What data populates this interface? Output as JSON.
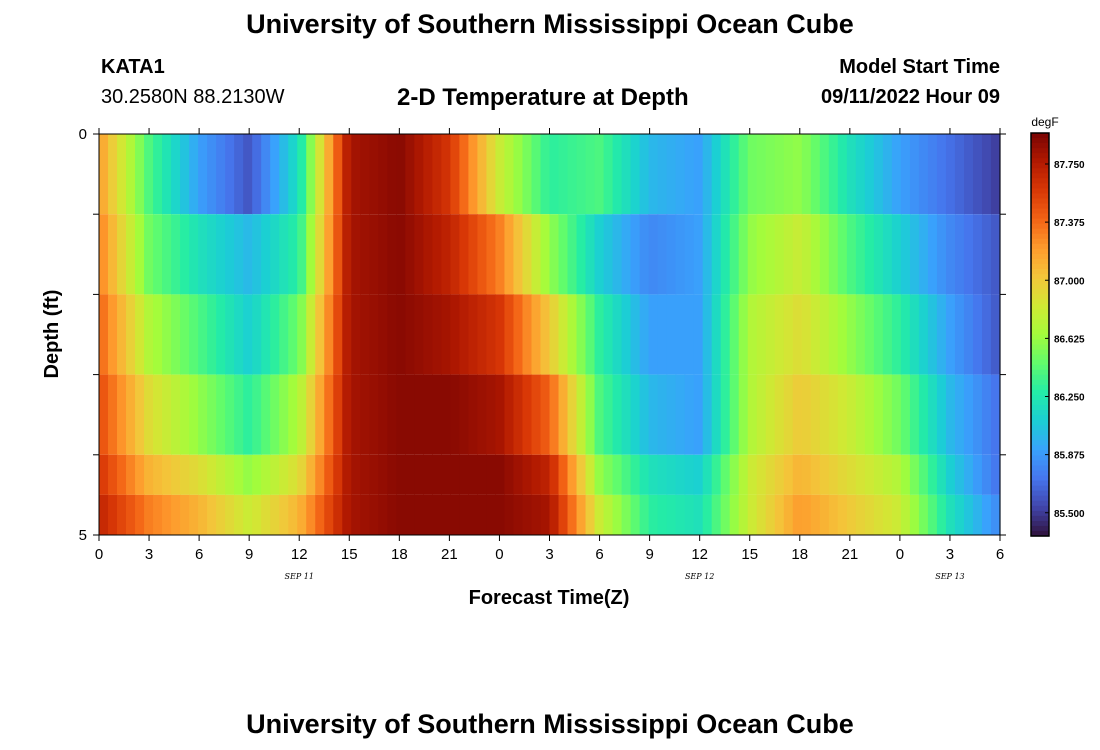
{
  "header": {
    "title": "University of Southern Mississippi Ocean Cube",
    "station": "KATA1",
    "coords": "30.2580N  88.2130W",
    "subtitle": "2-D Temperature at Depth",
    "model_label": "Model Start Time",
    "model_time": "09/11/2022 Hour 09"
  },
  "footer": {
    "title": "University of Southern Mississippi Ocean Cube"
  },
  "chart_data": {
    "type": "heatmap",
    "title": "2-D Temperature at Depth",
    "xlabel": "Forecast Time(Z)",
    "ylabel": "Depth (ft)",
    "x_tick_labels": [
      "0",
      "3",
      "6",
      "9",
      "12",
      "15",
      "18",
      "21",
      "0",
      "3",
      "6",
      "9",
      "12",
      "15",
      "18",
      "21",
      "0",
      "3",
      "6"
    ],
    "date_labels": [
      {
        "label": "SEP 11",
        "tick_index": 4
      },
      {
        "label": "SEP 12",
        "tick_index": 12
      },
      {
        "label": "SEP 13",
        "tick_index": 17
      }
    ],
    "y_tick_labels": [
      {
        "label": "0",
        "depth": 0
      },
      {
        "label": "5",
        "depth": 5
      }
    ],
    "ylim": [
      5,
      0
    ],
    "colorbar": {
      "unit": "degF",
      "min": 85.35,
      "max": 87.95,
      "tick_labels": [
        "87.750",
        "87.375",
        "87.000",
        "86.625",
        "86.250",
        "85.875",
        "85.500"
      ],
      "tick_values": [
        87.75,
        87.375,
        87.0,
        86.625,
        86.25,
        85.875,
        85.5
      ],
      "colors": [
        "#30123b",
        "#4145ab",
        "#4675ed",
        "#39a2fc",
        "#1bcfd4",
        "#24eca6",
        "#61fc6c",
        "#a4fc3b",
        "#d1e834",
        "#f3c63a",
        "#fe9b2d",
        "#f36315",
        "#d93806",
        "#b11901",
        "#7a0403"
      ]
    },
    "time_hours": [
      0,
      3,
      6,
      9,
      12,
      15,
      18,
      21,
      24,
      27,
      30,
      33,
      36,
      39,
      42,
      45,
      48,
      51,
      54
    ],
    "depth_levels_ft": [
      0.25,
      1.25,
      2.25,
      3.25,
      4.25,
      4.75
    ],
    "values_degF": [
      [
        87.2,
        86.4,
        85.9,
        85.6,
        86.2,
        87.8,
        87.9,
        87.6,
        86.8,
        86.3,
        86.4,
        86.0,
        85.9,
        86.5,
        86.6,
        86.2,
        85.9,
        85.7,
        85.5
      ],
      [
        87.3,
        86.5,
        86.2,
        86.0,
        86.3,
        87.8,
        87.9,
        87.7,
        87.3,
        86.6,
        86.1,
        85.8,
        85.9,
        86.6,
        86.8,
        86.4,
        86.1,
        85.8,
        85.6
      ],
      [
        87.4,
        86.7,
        86.4,
        86.1,
        86.5,
        87.8,
        87.9,
        87.8,
        87.6,
        87.0,
        86.3,
        85.9,
        85.9,
        86.7,
        86.9,
        86.6,
        86.3,
        85.9,
        85.6
      ],
      [
        87.5,
        86.9,
        86.6,
        86.3,
        86.7,
        87.8,
        87.9,
        87.9,
        87.8,
        87.4,
        86.4,
        86.0,
        85.9,
        86.7,
        87.0,
        86.8,
        86.5,
        86.0,
        85.7
      ],
      [
        87.6,
        87.1,
        86.9,
        86.6,
        86.9,
        87.8,
        87.9,
        87.9,
        87.9,
        87.7,
        86.6,
        86.2,
        86.1,
        86.8,
        87.1,
        86.9,
        86.7,
        86.1,
        85.7
      ],
      [
        87.7,
        87.3,
        87.1,
        86.8,
        87.1,
        87.8,
        87.9,
        87.9,
        87.9,
        87.8,
        86.8,
        86.3,
        86.2,
        86.8,
        87.2,
        87.0,
        86.8,
        86.2,
        85.8
      ]
    ]
  }
}
